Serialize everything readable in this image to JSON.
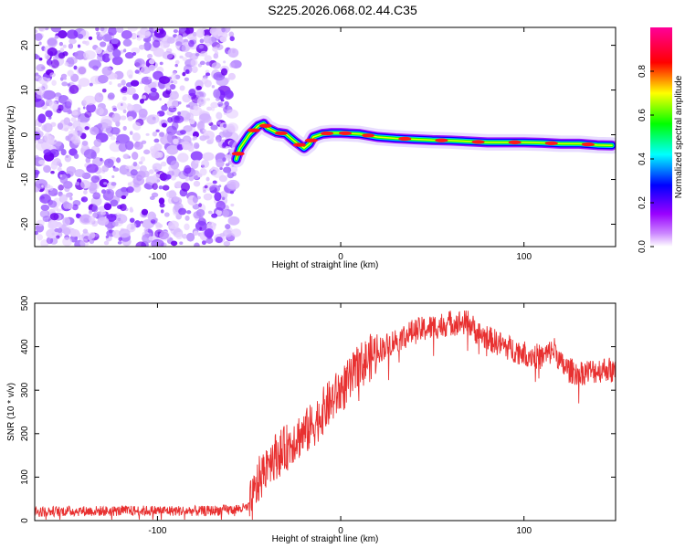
{
  "title": "S225.2026.068.02.44.C35",
  "chart_data": [
    {
      "type": "heatmap",
      "xlabel": "Height of straight line (km)",
      "ylabel": "Frequency (Hz)",
      "xlim": [
        -167,
        150
      ],
      "ylim": [
        -25,
        24
      ],
      "xticks": [
        -100,
        0,
        100
      ],
      "yticks": [
        -20,
        -10,
        0,
        10,
        20
      ],
      "noise_region_x": [
        -167,
        -57
      ],
      "signal_trace": {
        "x": [
          -57,
          -55,
          -50,
          -45,
          -42,
          -40,
          -35,
          -30,
          -25,
          -20,
          -17,
          -15,
          -10,
          -5,
          0,
          5,
          10,
          20,
          30,
          40,
          50,
          60,
          70,
          80,
          90,
          100,
          110,
          120,
          130,
          140,
          148
        ],
        "y": [
          -5.5,
          -3,
          0,
          2,
          2.5,
          1.5,
          0.5,
          0.2,
          -1.5,
          -3,
          -2,
          -0.5,
          0.2,
          0.4,
          0.4,
          0.3,
          0.2,
          -0.5,
          -0.8,
          -1,
          -1.2,
          -1.3,
          -1.5,
          -1.7,
          -1.7,
          -1.7,
          -1.8,
          -2.0,
          -2.0,
          -2.3,
          -2.4
        ]
      },
      "colorbar": {
        "label": "Normalized spectral amplitude",
        "ticks": [
          0.0,
          0.2,
          0.4,
          0.6,
          0.8
        ],
        "range": [
          0,
          1
        ],
        "colors": [
          "#ffffff",
          "#9900ff",
          "#0000ff",
          "#00ffff",
          "#00ff00",
          "#ffff00",
          "#ff0000",
          "#ff0099"
        ]
      }
    },
    {
      "type": "line",
      "xlabel": "Height of straight line (km)",
      "ylabel": "SNR (10 * v/v)",
      "xlim": [
        -167,
        150
      ],
      "ylim": [
        0,
        500
      ],
      "xticks": [
        -100,
        0,
        100
      ],
      "yticks": [
        0,
        100,
        200,
        300,
        400,
        500
      ],
      "line_color": "#e83030",
      "series": [
        {
          "name": "SNR",
          "x": [
            -167,
            -150,
            -125,
            -100,
            -75,
            -60,
            -50,
            -47,
            -45,
            -42,
            -40,
            -35,
            -30,
            -25,
            -20,
            -15,
            -10,
            -5,
            0,
            5,
            10,
            15,
            20,
            30,
            40,
            50,
            60,
            70,
            75,
            80,
            90,
            100,
            110,
            117,
            120,
            125,
            130,
            140,
            145,
            150
          ],
          "y": [
            20,
            22,
            22,
            23,
            22,
            25,
            30,
            60,
            90,
            110,
            140,
            150,
            165,
            190,
            200,
            220,
            250,
            275,
            300,
            320,
            355,
            370,
            390,
            415,
            435,
            445,
            455,
            455,
            430,
            420,
            400,
            385,
            375,
            395,
            360,
            345,
            340,
            345,
            350,
            340
          ]
        }
      ]
    }
  ]
}
